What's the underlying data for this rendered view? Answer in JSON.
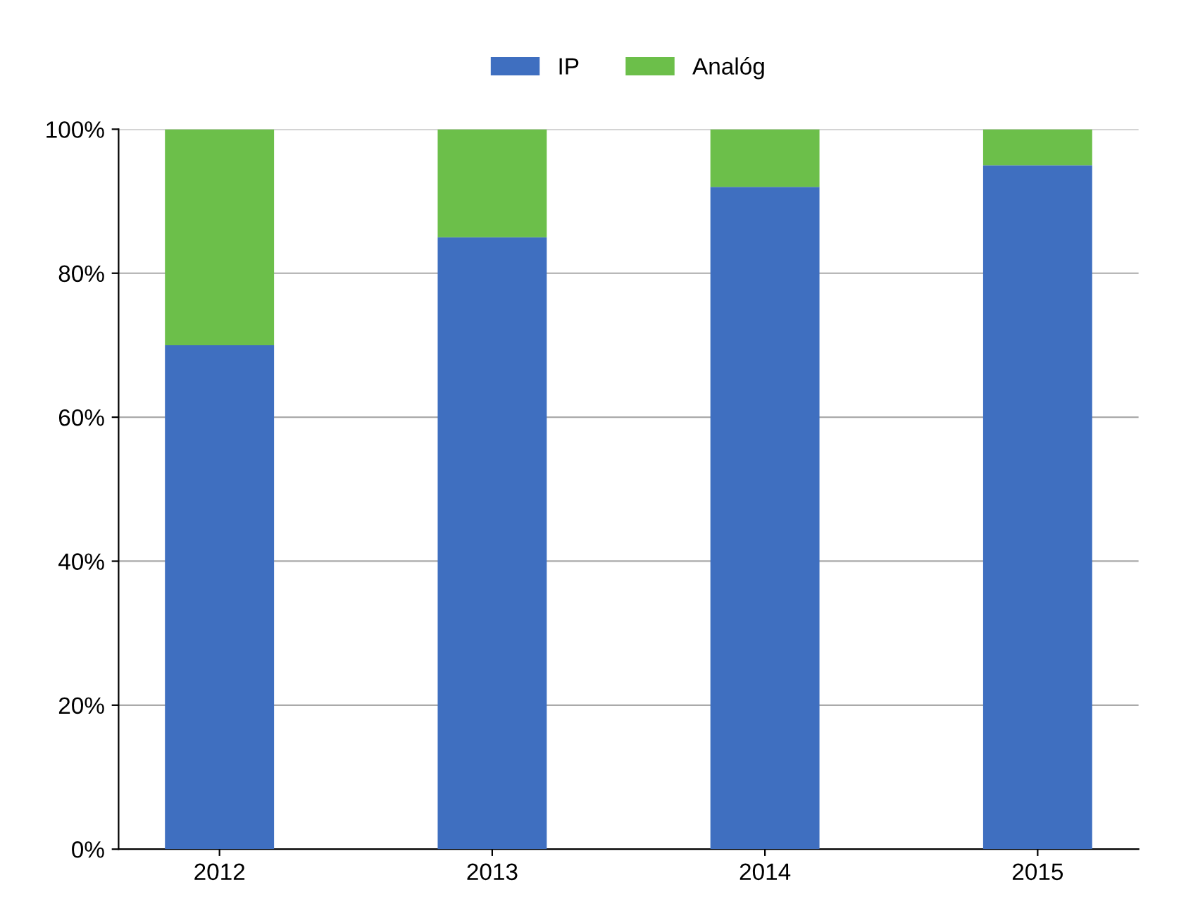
{
  "chart_data": {
    "type": "bar",
    "stacked": true,
    "categories": [
      "2012",
      "2013",
      "2014",
      "2015"
    ],
    "series": [
      {
        "name": "IP",
        "color": "#3f6fc0",
        "values": [
          70,
          85,
          92,
          95
        ]
      },
      {
        "name": "Analóg",
        "color": "#6cbf4a",
        "values": [
          30,
          15,
          8,
          5
        ]
      }
    ],
    "ylim": [
      0,
      100
    ],
    "yticks": [
      {
        "value": 0,
        "label": "0%"
      },
      {
        "value": 20,
        "label": "20%"
      },
      {
        "value": 40,
        "label": "40%"
      },
      {
        "value": 60,
        "label": "60%"
      },
      {
        "value": 80,
        "label": "80%"
      },
      {
        "value": 100,
        "label": "100%"
      }
    ],
    "grid": "y",
    "legend": "top"
  }
}
